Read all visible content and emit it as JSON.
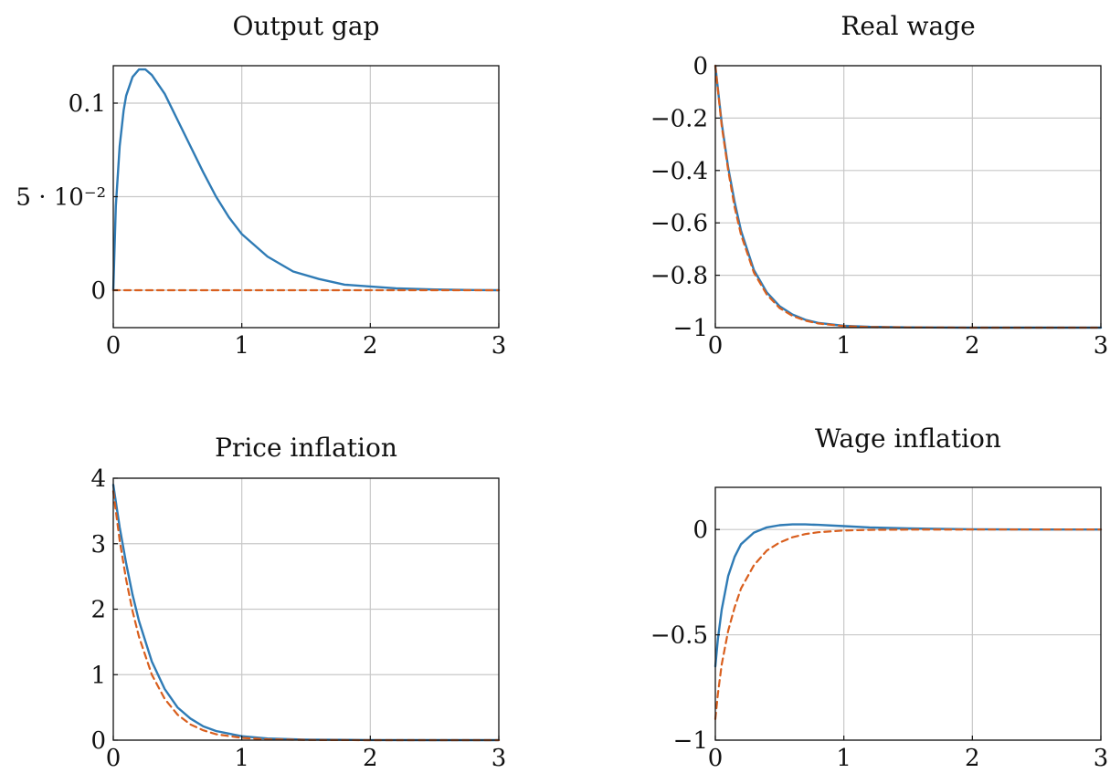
{
  "colors": {
    "solid": "#2f7bb5",
    "dashed": "#d95f1e"
  },
  "chart_data": [
    {
      "type": "line",
      "title": "Output gap",
      "xlim": [
        0,
        3
      ],
      "ylim": [
        -0.02,
        0.12
      ],
      "xticks": [
        0,
        1,
        2,
        3
      ],
      "xtick_labels": [
        "0",
        "1",
        "2",
        "3"
      ],
      "yticks": [
        0,
        0.05,
        0.1
      ],
      "ytick_labels": [
        "0",
        "5 · 10⁻²",
        "0.1"
      ],
      "grid": true,
      "series": [
        {
          "style": "solid",
          "x": [
            0,
            0.02,
            0.05,
            0.08,
            0.1,
            0.15,
            0.2,
            0.25,
            0.3,
            0.4,
            0.5,
            0.6,
            0.7,
            0.8,
            0.9,
            1.0,
            1.2,
            1.4,
            1.6,
            1.8,
            2.0,
            2.2,
            2.5,
            2.8,
            3.0
          ],
          "y": [
            0,
            0.045,
            0.077,
            0.096,
            0.104,
            0.114,
            0.118,
            0.118,
            0.115,
            0.105,
            0.091,
            0.077,
            0.063,
            0.05,
            0.039,
            0.03,
            0.018,
            0.01,
            0.006,
            0.003,
            0.002,
            0.001,
            0.0004,
            0.0001,
            0
          ]
        },
        {
          "style": "dashed",
          "x": [
            0,
            3
          ],
          "y": [
            0,
            0
          ]
        }
      ]
    },
    {
      "type": "line",
      "title": "Real wage",
      "xlim": [
        0,
        3
      ],
      "ylim": [
        -1,
        0
      ],
      "xticks": [
        0,
        1,
        2,
        3
      ],
      "xtick_labels": [
        "0",
        "1",
        "2",
        "3"
      ],
      "yticks": [
        0,
        -0.2,
        -0.4,
        -0.6,
        -0.8,
        -1
      ],
      "ytick_labels": [
        "0",
        "−0.2",
        "−0.4",
        "−0.6",
        "−0.8",
        "−1"
      ],
      "grid": true,
      "series": [
        {
          "style": "solid",
          "x": [
            0,
            0.05,
            0.1,
            0.15,
            0.2,
            0.3,
            0.4,
            0.5,
            0.6,
            0.7,
            0.8,
            1.0,
            1.2,
            1.5,
            2.0,
            2.5,
            3.0
          ],
          "y": [
            0,
            -0.22,
            -0.39,
            -0.52,
            -0.63,
            -0.78,
            -0.865,
            -0.918,
            -0.95,
            -0.97,
            -0.982,
            -0.993,
            -0.997,
            -0.999,
            -1,
            -1,
            -1
          ]
        },
        {
          "style": "dashed",
          "x": [
            0,
            0.05,
            0.1,
            0.15,
            0.2,
            0.3,
            0.4,
            0.5,
            0.6,
            0.7,
            0.8,
            1.0,
            1.2,
            1.5,
            2.0,
            2.5,
            3.0
          ],
          "y": [
            0,
            -0.23,
            -0.4,
            -0.54,
            -0.645,
            -0.79,
            -0.873,
            -0.925,
            -0.955,
            -0.973,
            -0.984,
            -0.994,
            -0.998,
            -0.999,
            -1,
            -1,
            -1
          ]
        }
      ]
    },
    {
      "type": "line",
      "title": "Price inflation",
      "xlim": [
        0,
        3
      ],
      "ylim": [
        0,
        4
      ],
      "xticks": [
        0,
        1,
        2,
        3
      ],
      "xtick_labels": [
        "0",
        "1",
        "2",
        "3"
      ],
      "yticks": [
        0,
        1,
        2,
        3,
        4
      ],
      "ytick_labels": [
        "0",
        "1",
        "2",
        "3",
        "4"
      ],
      "grid": true,
      "series": [
        {
          "style": "solid",
          "x": [
            0,
            0.05,
            0.1,
            0.15,
            0.2,
            0.3,
            0.4,
            0.5,
            0.6,
            0.7,
            0.8,
            1.0,
            1.2,
            1.5,
            2.0,
            2.5,
            3.0
          ],
          "y": [
            3.9,
            3.25,
            2.7,
            2.22,
            1.82,
            1.2,
            0.78,
            0.5,
            0.33,
            0.21,
            0.14,
            0.06,
            0.025,
            0.008,
            0.001,
            0,
            0
          ]
        },
        {
          "style": "dashed",
          "x": [
            0,
            0.05,
            0.1,
            0.15,
            0.2,
            0.3,
            0.4,
            0.5,
            0.6,
            0.7,
            0.8,
            1.0,
            1.2,
            1.5,
            2.0,
            2.5,
            3.0
          ],
          "y": [
            3.8,
            3.05,
            2.45,
            1.97,
            1.58,
            1.0,
            0.63,
            0.39,
            0.24,
            0.15,
            0.09,
            0.035,
            0.013,
            0.003,
            0,
            0,
            0
          ]
        }
      ]
    },
    {
      "type": "line",
      "title": "Wage inflation",
      "xlim": [
        0,
        3
      ],
      "ylim": [
        -1,
        0.2
      ],
      "xticks": [
        0,
        1,
        2,
        3
      ],
      "xtick_labels": [
        "0",
        "1",
        "2",
        "3"
      ],
      "yticks": [
        0,
        -0.5,
        -1
      ],
      "ytick_labels": [
        "0",
        "−0.5",
        "−1"
      ],
      "grid": true,
      "series": [
        {
          "style": "solid",
          "x": [
            0,
            0.02,
            0.05,
            0.1,
            0.15,
            0.2,
            0.3,
            0.4,
            0.5,
            0.6,
            0.7,
            0.8,
            1.0,
            1.2,
            1.5,
            2.0,
            2.5,
            3.0
          ],
          "y": [
            -0.65,
            -0.52,
            -0.38,
            -0.22,
            -0.13,
            -0.07,
            -0.015,
            0.01,
            0.02,
            0.024,
            0.024,
            0.022,
            0.016,
            0.01,
            0.005,
            0.001,
            0,
            0
          ]
        },
        {
          "style": "dashed",
          "x": [
            0,
            0.02,
            0.05,
            0.1,
            0.15,
            0.2,
            0.3,
            0.4,
            0.5,
            0.6,
            0.7,
            0.8,
            1.0,
            1.2,
            1.5,
            2.0,
            2.5,
            3.0
          ],
          "y": [
            -0.9,
            -0.78,
            -0.64,
            -0.48,
            -0.37,
            -0.28,
            -0.17,
            -0.1,
            -0.062,
            -0.037,
            -0.022,
            -0.013,
            -0.005,
            -0.002,
            -0.0005,
            0,
            0,
            0
          ]
        }
      ]
    }
  ]
}
